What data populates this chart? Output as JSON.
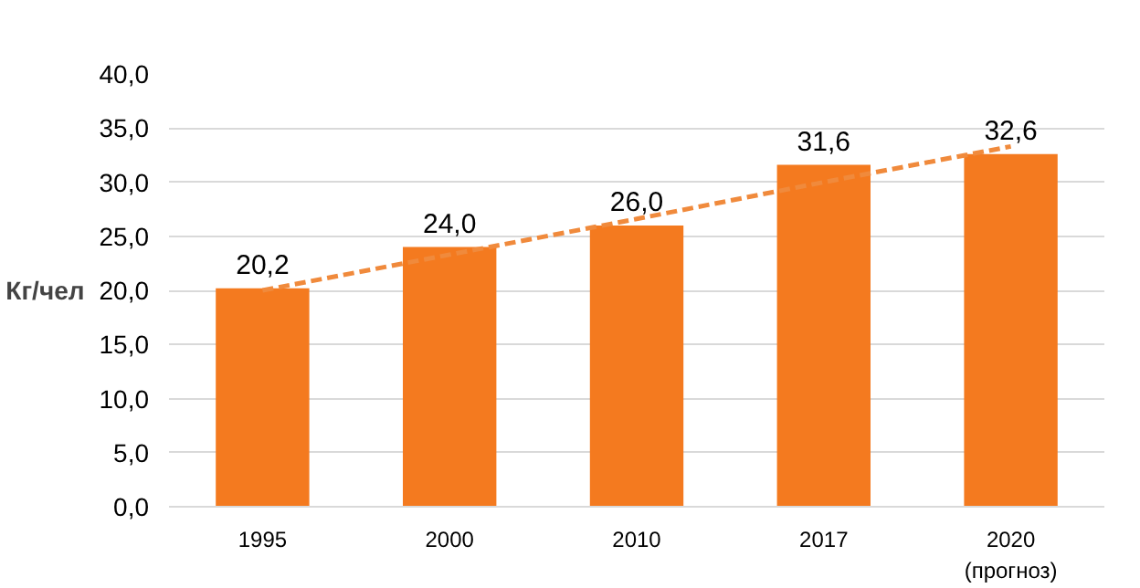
{
  "chart_data": {
    "type": "bar",
    "ylabel": "Кг/чел",
    "categories": [
      "1995",
      "2000",
      "2010",
      "2017",
      "2020\n(прогноз)"
    ],
    "series": [
      {
        "color": "#f47a1f",
        "values": [
          20.2,
          24.0,
          26.0,
          31.6,
          32.6
        ],
        "value_labels": [
          "20,2",
          "24,0",
          "26,0",
          "31,6",
          "32,6"
        ]
      },
      {
        "type": "line",
        "color": "#f08a3c",
        "line_style": "dashed",
        "marker": "none",
        "values": [
          20.0,
          23.3,
          26.6,
          30.0,
          33.3
        ]
      }
    ],
    "ylim": [
      0,
      40
    ],
    "yticks": [
      {
        "value": 0,
        "label": "0,0"
      },
      {
        "value": 5,
        "label": "5,0"
      },
      {
        "value": 10,
        "label": "10,0"
      },
      {
        "value": 15,
        "label": "15,0"
      },
      {
        "value": 20,
        "label": "20,0"
      },
      {
        "value": 25,
        "label": "25,0"
      },
      {
        "value": 30,
        "label": "30,0"
      },
      {
        "value": 35,
        "label": "35,0"
      },
      {
        "value": 40,
        "label": "40,0"
      }
    ],
    "grid": "y"
  }
}
